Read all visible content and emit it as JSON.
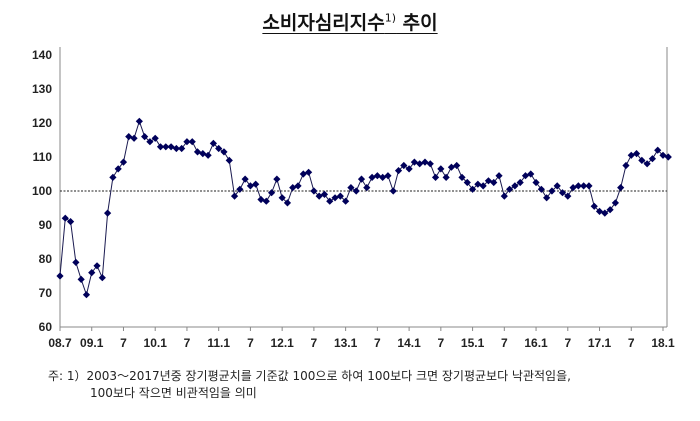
{
  "chart_data": {
    "type": "line",
    "title": "소비자심리지수",
    "title_sup": "1)",
    "title_suffix": " 추이",
    "xlabel": "",
    "ylabel": "",
    "ylim": [
      60,
      140
    ],
    "yticks": [
      60,
      70,
      80,
      90,
      100,
      110,
      120,
      130,
      140
    ],
    "reference_line": 100,
    "start": "2008.7",
    "xtick_labels": [
      "08.7",
      "09.1",
      "7",
      "10.1",
      "7",
      "11.1",
      "7",
      "12.1",
      "7",
      "13.1",
      "7",
      "14.1",
      "7",
      "15.1",
      "7",
      "16.1",
      "7",
      "17.1",
      "7",
      "18.1"
    ],
    "series": [
      {
        "name": "소비자심리지수",
        "color": "#00005a",
        "values": [
          75,
          92,
          91,
          79,
          74,
          69.5,
          76,
          78,
          74.5,
          93.5,
          104,
          106.5,
          108.5,
          116,
          115.5,
          120.5,
          116,
          114.5,
          115.5,
          113,
          113,
          113,
          112.5,
          112.5,
          114.5,
          114.5,
          111.5,
          111,
          110.5,
          114,
          112.5,
          111.5,
          109,
          98.5,
          100.5,
          103.5,
          101.5,
          102,
          97.5,
          97,
          99.5,
          103.5,
          98,
          96.5,
          101,
          101.5,
          105,
          105.5,
          100,
          98.5,
          99,
          97,
          98,
          98.5,
          97,
          101,
          100,
          103.5,
          101,
          104,
          104.5,
          104,
          104.5,
          100,
          106,
          107.5,
          106.5,
          108.5,
          108,
          108.5,
          108,
          104,
          106.5,
          104,
          107,
          107.5,
          104,
          102.5,
          100.5,
          102,
          101.5,
          103,
          102.5,
          104.5,
          98.5,
          100.5,
          101.5,
          102.5,
          104.5,
          105,
          102.5,
          100.5,
          98,
          100,
          101.5,
          99.5,
          98.5,
          101,
          101.5,
          101.5,
          101.5,
          95.5,
          94,
          93.5,
          94.5,
          96.5,
          101,
          107.5,
          110.5,
          111,
          109,
          108,
          109.5,
          112,
          110.5,
          110
        ]
      }
    ]
  },
  "note": {
    "line1": "주: 1）2003～2017년중 장기평균치를 기준값 100으로 하여 100보다 크면 장기평균보다 낙관적임을,",
    "line2": "100보다 작으면 비관적임을 의미"
  }
}
